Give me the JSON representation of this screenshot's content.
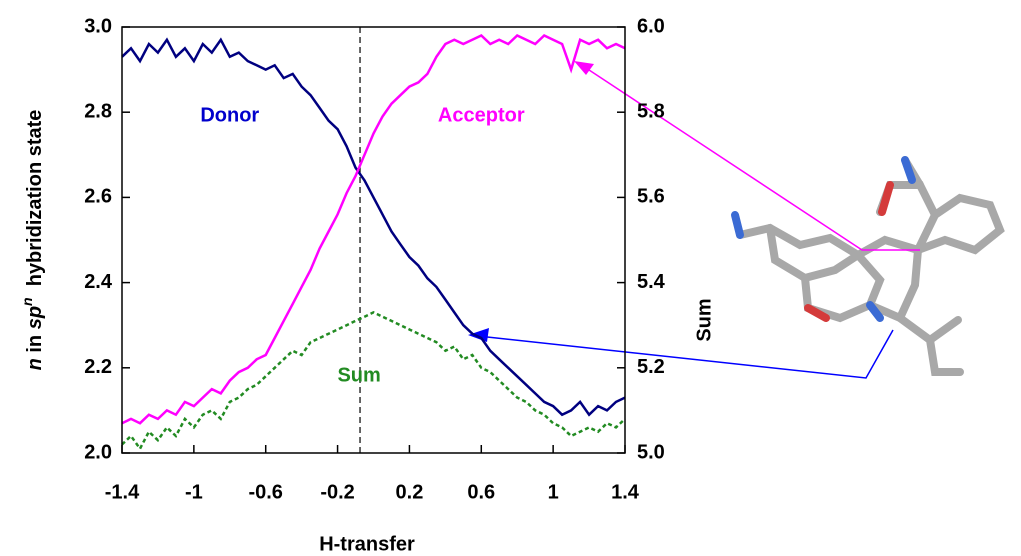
{
  "chart_data": {
    "type": "line",
    "xlabel": "H-transfer",
    "ylabel": [
      "n",
      " in ",
      "sp",
      "n",
      "  hybridization state"
    ],
    "y2label": "Sum",
    "x": [
      -1.4,
      -1.35,
      -1.3,
      -1.25,
      -1.2,
      -1.15,
      -1.1,
      -1.05,
      -1.0,
      -0.95,
      -0.9,
      -0.85,
      -0.8,
      -0.75,
      -0.7,
      -0.65,
      -0.6,
      -0.55,
      -0.5,
      -0.45,
      -0.4,
      -0.35,
      -0.3,
      -0.25,
      -0.2,
      -0.15,
      -0.1,
      -0.05,
      0,
      0.05,
      0.1,
      0.15,
      0.2,
      0.25,
      0.3,
      0.35,
      0.4,
      0.45,
      0.5,
      0.55,
      0.6,
      0.65,
      0.7,
      0.75,
      0.8,
      0.85,
      0.9,
      0.95,
      1.0,
      1.05,
      1.1,
      1.15,
      1.2,
      1.25,
      1.3,
      1.35,
      1.4
    ],
    "series": [
      {
        "name": "Donor",
        "color": "#000080",
        "dash": false,
        "values": [
          2.93,
          2.95,
          2.92,
          2.96,
          2.94,
          2.97,
          2.93,
          2.95,
          2.92,
          2.96,
          2.94,
          2.97,
          2.93,
          2.94,
          2.92,
          2.91,
          2.9,
          2.91,
          2.88,
          2.89,
          2.86,
          2.84,
          2.81,
          2.78,
          2.76,
          2.72,
          2.67,
          2.64,
          2.6,
          2.56,
          2.52,
          2.49,
          2.46,
          2.44,
          2.41,
          2.39,
          2.36,
          2.33,
          2.3,
          2.28,
          2.27,
          2.24,
          2.22,
          2.2,
          2.18,
          2.16,
          2.14,
          2.12,
          2.11,
          2.09,
          2.1,
          2.12,
          2.09,
          2.11,
          2.1,
          2.12,
          2.13
        ]
      },
      {
        "name": "Acceptor",
        "color": "#ff00ff",
        "dash": false,
        "values": [
          2.07,
          2.08,
          2.07,
          2.09,
          2.08,
          2.1,
          2.09,
          2.12,
          2.11,
          2.13,
          2.15,
          2.14,
          2.17,
          2.19,
          2.2,
          2.22,
          2.23,
          2.27,
          2.31,
          2.35,
          2.39,
          2.43,
          2.48,
          2.52,
          2.56,
          2.61,
          2.65,
          2.7,
          2.75,
          2.79,
          2.82,
          2.84,
          2.86,
          2.87,
          2.89,
          2.93,
          2.96,
          2.97,
          2.96,
          2.97,
          2.98,
          2.96,
          2.97,
          2.96,
          2.98,
          2.97,
          2.96,
          2.98,
          2.97,
          2.96,
          2.9,
          2.97,
          2.96,
          2.97,
          2.95,
          2.96,
          2.95
        ]
      },
      {
        "name": "Sum",
        "color": "#228b22",
        "dash": true,
        "axis": "y2",
        "values": [
          5.02,
          5.04,
          5.01,
          5.05,
          5.03,
          5.06,
          5.04,
          5.08,
          5.06,
          5.09,
          5.1,
          5.08,
          5.12,
          5.13,
          5.15,
          5.16,
          5.18,
          5.2,
          5.22,
          5.24,
          5.23,
          5.26,
          5.27,
          5.28,
          5.29,
          5.3,
          5.31,
          5.32,
          5.33,
          5.32,
          5.31,
          5.3,
          5.29,
          5.28,
          5.27,
          5.26,
          5.24,
          5.25,
          5.22,
          5.23,
          5.2,
          5.19,
          5.17,
          5.15,
          5.13,
          5.12,
          5.1,
          5.09,
          5.07,
          5.06,
          5.04,
          5.05,
          5.06,
          5.05,
          5.07,
          5.06,
          5.08
        ]
      }
    ],
    "annotations": [
      {
        "text": "Donor",
        "x": -0.8,
        "y": 2.79,
        "color": "#0000cc"
      },
      {
        "text": "Acceptor",
        "x": 0.6,
        "y": 2.79,
        "color": "#ff00ff"
      },
      {
        "text": "Sum",
        "x": -0.08,
        "y": 2.18,
        "color": "#228b22"
      }
    ],
    "reference_x": -0.075,
    "xlim": [
      -1.4,
      1.4
    ],
    "xticks": [
      -1.4,
      -1,
      -0.6,
      -0.2,
      0.2,
      0.6,
      1,
      1.4
    ],
    "ylim": [
      2.0,
      3.0
    ],
    "yticks": [
      {
        "value": 2.0,
        "label": "2.0"
      },
      2.2,
      2.4,
      2.6,
      2.8,
      {
        "value": 3.0,
        "label": "3.0"
      }
    ],
    "y2lim": [
      5.0,
      6.0
    ],
    "y2ticks": [
      {
        "value": 5.0,
        "label": "5.0"
      },
      5.2,
      5.4,
      5.6,
      5.8,
      {
        "value": 6.0,
        "label": "6.0"
      }
    ]
  }
}
